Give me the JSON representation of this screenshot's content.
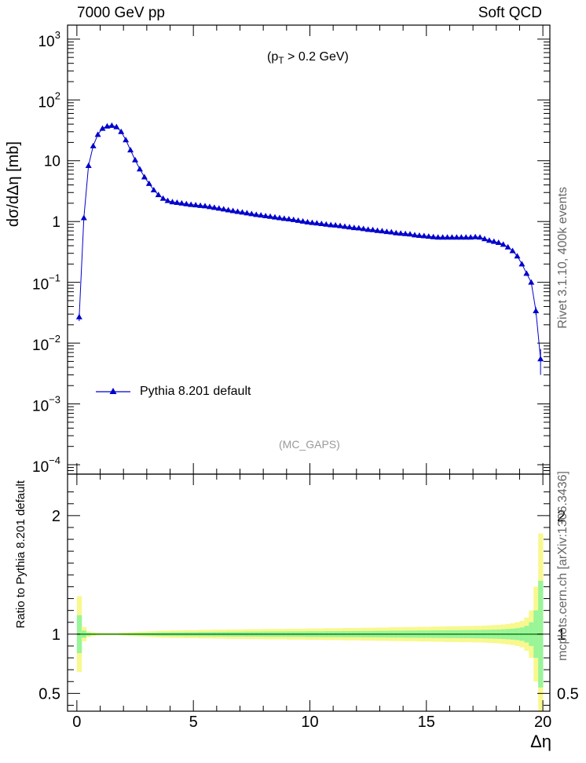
{
  "header": {
    "left": "7000 GeV pp",
    "right": "Soft QCD"
  },
  "side_labels": {
    "rivet": "Rivet 3.1.10,  400k events",
    "source": "mcplots.cern.ch [arXiv:1306.3436]"
  },
  "chart_data": [
    {
      "type": "line",
      "panel": "main",
      "ylabel": "dσ/dΔη [mb]",
      "xlabel": "",
      "annotation": "(p_T > 0.2 GeV)",
      "analysis": "(MC_GAPS)",
      "yscale": "log",
      "xlim": [
        -0.4,
        20.3
      ],
      "ylim": [
        7e-05,
        1700
      ],
      "grid": false,
      "legend": {
        "placement": "bottom-left",
        "entries": [
          "Pythia 8.201 default"
        ]
      },
      "y_tick_labels": [
        "10^-4",
        "10^-3",
        "10^-2",
        "10^-1",
        "1",
        "10",
        "10^2",
        "10^3"
      ],
      "x": [
        0.1,
        0.3,
        0.5,
        0.7,
        0.9,
        1.1,
        1.3,
        1.5,
        1.7,
        1.9,
        2.1,
        2.3,
        2.5,
        2.7,
        2.9,
        3.1,
        3.3,
        3.5,
        3.7,
        3.9,
        4.1,
        4.3,
        4.5,
        4.7,
        4.9,
        5.1,
        5.3,
        5.5,
        5.7,
        5.9,
        6.1,
        6.3,
        6.5,
        6.7,
        6.9,
        7.1,
        7.3,
        7.5,
        7.7,
        7.9,
        8.1,
        8.3,
        8.5,
        8.7,
        8.9,
        9.1,
        9.3,
        9.5,
        9.7,
        9.9,
        10.1,
        10.3,
        10.5,
        10.7,
        10.9,
        11.1,
        11.3,
        11.5,
        11.7,
        11.9,
        12.1,
        12.3,
        12.5,
        12.7,
        12.9,
        13.1,
        13.3,
        13.5,
        13.7,
        13.9,
        14.1,
        14.3,
        14.5,
        14.7,
        14.9,
        15.1,
        15.3,
        15.5,
        15.7,
        15.9,
        16.1,
        16.3,
        16.5,
        16.7,
        16.9,
        17.1,
        17.3,
        17.5,
        17.7,
        17.9,
        18.1,
        18.3,
        18.5,
        18.7,
        18.9,
        19.1,
        19.3,
        19.5,
        19.7,
        19.9
      ],
      "series": [
        {
          "name": "Pythia 8.201 default",
          "color": "#0000cc",
          "marker": "triangle",
          "values": [
            0.027,
            1.15,
            8.3,
            17.5,
            27,
            34,
            37,
            38,
            36,
            30,
            22,
            15,
            10.3,
            7.3,
            5.4,
            4.2,
            3.3,
            2.75,
            2.4,
            2.2,
            2.1,
            2.05,
            2.0,
            1.95,
            1.9,
            1.87,
            1.83,
            1.8,
            1.75,
            1.7,
            1.65,
            1.6,
            1.55,
            1.5,
            1.46,
            1.42,
            1.38,
            1.34,
            1.3,
            1.27,
            1.24,
            1.21,
            1.18,
            1.15,
            1.12,
            1.1,
            1.07,
            1.04,
            1.01,
            0.98,
            0.96,
            0.94,
            0.92,
            0.9,
            0.88,
            0.87,
            0.85,
            0.83,
            0.81,
            0.79,
            0.78,
            0.76,
            0.74,
            0.73,
            0.71,
            0.7,
            0.68,
            0.67,
            0.65,
            0.64,
            0.63,
            0.62,
            0.6,
            0.59,
            0.58,
            0.57,
            0.56,
            0.55,
            0.55,
            0.55,
            0.55,
            0.55,
            0.55,
            0.55,
            0.55,
            0.56,
            0.55,
            0.52,
            0.49,
            0.47,
            0.45,
            0.42,
            0.38,
            0.33,
            0.27,
            0.2,
            0.14,
            0.1,
            0.034,
            0.0055
          ],
          "errors": [
            0.004,
            0.03,
            0.1,
            0.15,
            0.2,
            0.2,
            0.2,
            0.2,
            0.2,
            0.2,
            0.15,
            0.1,
            0.08,
            0.06,
            0.04,
            0.03,
            0.03,
            0.02,
            0.02,
            0.02,
            0.02,
            0.02,
            0.02,
            0.02,
            0.02,
            0.02,
            0.02,
            0.02,
            0.02,
            0.02,
            0.02,
            0.02,
            0.02,
            0.02,
            0.02,
            0.02,
            0.02,
            0.02,
            0.02,
            0.02,
            0.02,
            0.02,
            0.02,
            0.02,
            0.02,
            0.02,
            0.02,
            0.02,
            0.02,
            0.02,
            0.02,
            0.02,
            0.02,
            0.02,
            0.02,
            0.02,
            0.02,
            0.02,
            0.02,
            0.02,
            0.02,
            0.02,
            0.02,
            0.02,
            0.02,
            0.02,
            0.02,
            0.02,
            0.02,
            0.02,
            0.02,
            0.02,
            0.02,
            0.02,
            0.02,
            0.02,
            0.02,
            0.02,
            0.02,
            0.02,
            0.02,
            0.02,
            0.02,
            0.02,
            0.02,
            0.02,
            0.02,
            0.02,
            0.02,
            0.02,
            0.02,
            0.02,
            0.02,
            0.02,
            0.02,
            0.01,
            0.008,
            0.006,
            0.005,
            0.0025
          ]
        }
      ]
    },
    {
      "type": "area",
      "panel": "ratio",
      "ylabel": "Ratio to Pythia 8.201 default",
      "xlabel": "Δη",
      "xlim": [
        -0.4,
        20.3
      ],
      "ylim": [
        0.35,
        2.35
      ],
      "x_tick_labels": [
        "0",
        "5",
        "10",
        "15",
        "20"
      ],
      "y_tick_labels": [
        "0.5",
        "1",
        "2"
      ],
      "reference_line": 1.0,
      "band_colors": {
        "inner": "#98f598",
        "outer": "#f8f88e",
        "line": "#006400"
      },
      "x": [
        0.1,
        0.3,
        0.5,
        0.7,
        0.9,
        1.1,
        1.3,
        1.5,
        1.7,
        1.9,
        2.1,
        2.3,
        2.5,
        2.7,
        2.9,
        3.1,
        3.3,
        3.5,
        3.7,
        3.9,
        4.1,
        4.3,
        4.5,
        4.7,
        4.9,
        5.1,
        5.3,
        5.5,
        5.7,
        5.9,
        6.1,
        6.3,
        6.5,
        6.7,
        6.9,
        7.1,
        7.3,
        7.5,
        7.7,
        7.9,
        8.1,
        8.3,
        8.5,
        8.7,
        8.9,
        9.1,
        9.3,
        9.5,
        9.7,
        9.9,
        10.1,
        10.3,
        10.5,
        10.7,
        10.9,
        11.1,
        11.3,
        11.5,
        11.7,
        11.9,
        12.1,
        12.3,
        12.5,
        12.7,
        12.9,
        13.1,
        13.3,
        13.5,
        13.7,
        13.9,
        14.1,
        14.3,
        14.5,
        14.7,
        14.9,
        15.1,
        15.3,
        15.5,
        15.7,
        15.9,
        16.1,
        16.3,
        16.5,
        16.7,
        16.9,
        17.1,
        17.3,
        17.5,
        17.7,
        17.9,
        18.1,
        18.3,
        18.5,
        18.7,
        18.9,
        19.1,
        19.3,
        19.5,
        19.7,
        19.9
      ],
      "inner_halfwidth": [
        0.16,
        0.03,
        0.012,
        0.008,
        0.006,
        0.005,
        0.005,
        0.005,
        0.005,
        0.006,
        0.007,
        0.008,
        0.009,
        0.01,
        0.011,
        0.012,
        0.013,
        0.014,
        0.015,
        0.015,
        0.016,
        0.016,
        0.016,
        0.017,
        0.017,
        0.017,
        0.018,
        0.018,
        0.018,
        0.019,
        0.019,
        0.019,
        0.02,
        0.02,
        0.02,
        0.02,
        0.021,
        0.021,
        0.021,
        0.021,
        0.022,
        0.022,
        0.022,
        0.022,
        0.022,
        0.023,
        0.023,
        0.023,
        0.023,
        0.024,
        0.024,
        0.024,
        0.024,
        0.025,
        0.025,
        0.025,
        0.025,
        0.026,
        0.026,
        0.026,
        0.026,
        0.027,
        0.027,
        0.027,
        0.028,
        0.028,
        0.028,
        0.029,
        0.029,
        0.029,
        0.03,
        0.03,
        0.03,
        0.031,
        0.031,
        0.031,
        0.032,
        0.032,
        0.032,
        0.033,
        0.033,
        0.033,
        0.034,
        0.034,
        0.034,
        0.035,
        0.035,
        0.036,
        0.037,
        0.038,
        0.039,
        0.041,
        0.043,
        0.046,
        0.05,
        0.056,
        0.07,
        0.1,
        0.2,
        0.45
      ],
      "outer_halfwidth": [
        0.32,
        0.06,
        0.024,
        0.016,
        0.012,
        0.01,
        0.01,
        0.01,
        0.01,
        0.012,
        0.014,
        0.016,
        0.018,
        0.02,
        0.022,
        0.024,
        0.026,
        0.028,
        0.03,
        0.03,
        0.032,
        0.032,
        0.032,
        0.034,
        0.034,
        0.034,
        0.036,
        0.036,
        0.036,
        0.038,
        0.038,
        0.038,
        0.04,
        0.04,
        0.04,
        0.04,
        0.042,
        0.042,
        0.042,
        0.042,
        0.044,
        0.044,
        0.044,
        0.044,
        0.044,
        0.046,
        0.046,
        0.046,
        0.046,
        0.048,
        0.048,
        0.048,
        0.048,
        0.05,
        0.05,
        0.05,
        0.05,
        0.052,
        0.052,
        0.052,
        0.052,
        0.054,
        0.054,
        0.054,
        0.056,
        0.056,
        0.056,
        0.058,
        0.058,
        0.058,
        0.06,
        0.06,
        0.06,
        0.062,
        0.062,
        0.062,
        0.064,
        0.064,
        0.064,
        0.066,
        0.066,
        0.066,
        0.068,
        0.068,
        0.068,
        0.07,
        0.07,
        0.072,
        0.074,
        0.076,
        0.078,
        0.082,
        0.086,
        0.092,
        0.1,
        0.112,
        0.14,
        0.2,
        0.4,
        0.85
      ]
    }
  ]
}
